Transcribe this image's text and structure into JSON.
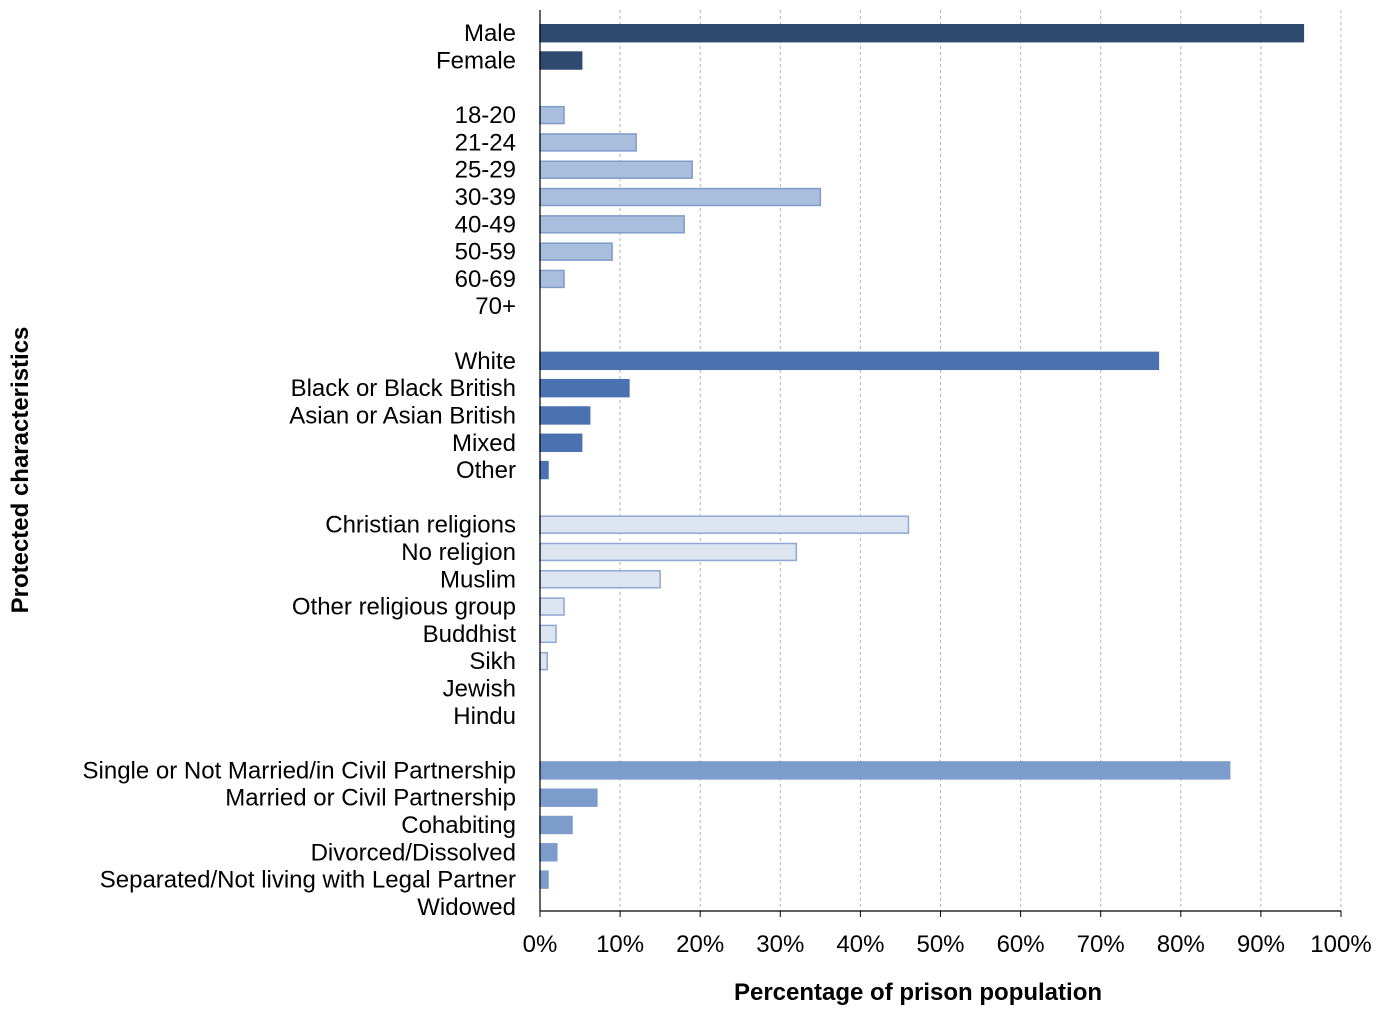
{
  "chart_data": {
    "type": "bar",
    "orientation": "horizontal",
    "xlabel": "Percentage of prison population",
    "ylabel": "Protected characteristics",
    "xlim": [
      0,
      100
    ],
    "x_ticks": [
      "0%",
      "10%",
      "20%",
      "30%",
      "40%",
      "50%",
      "60%",
      "70%",
      "80%",
      "90%",
      "100%"
    ],
    "grid": "vertical dashed",
    "groups": [
      {
        "color": "#2E4A6E",
        "border": "#2E4A6E",
        "categories": [
          "Male",
          "Female"
        ],
        "values": [
          95.3,
          5.2
        ]
      },
      {
        "color": "#A9BDDD",
        "border": "#7F9CCB",
        "categories": [
          "18-20",
          "21-24",
          "25-29",
          "30-39",
          "40-49",
          "50-59",
          "60-69",
          "70+"
        ],
        "values": [
          3,
          12,
          19,
          35,
          18,
          9,
          3,
          0
        ]
      },
      {
        "color": "#4A72B0",
        "border": "#4A72B0",
        "categories": [
          "White",
          "Black or Black British",
          "Asian or Asian British",
          "Mixed",
          "Other"
        ],
        "values": [
          77.2,
          11.1,
          6.2,
          5.2,
          1.0
        ]
      },
      {
        "color": "#DDE5F1",
        "border": "#8FA8D3",
        "categories": [
          "Christian religions",
          "No religion",
          "Muslim",
          "Other religious group",
          "Buddhist",
          "Sikh",
          "Jewish",
          "Hindu"
        ],
        "values": [
          46,
          32,
          15,
          3,
          2,
          0.9,
          0,
          0
        ]
      },
      {
        "color": "#7C9CCB",
        "border": "#7C9CCB",
        "categories": [
          "Single or Not Married/in Civil Partnership",
          "Married or Civil Partnership",
          "Cohabiting",
          "Divorced/Dissolved",
          "Separated/Not living with Legal Partner",
          "Widowed"
        ],
        "values": [
          86.1,
          7.1,
          4.0,
          2.1,
          1.0,
          0
        ]
      }
    ]
  }
}
